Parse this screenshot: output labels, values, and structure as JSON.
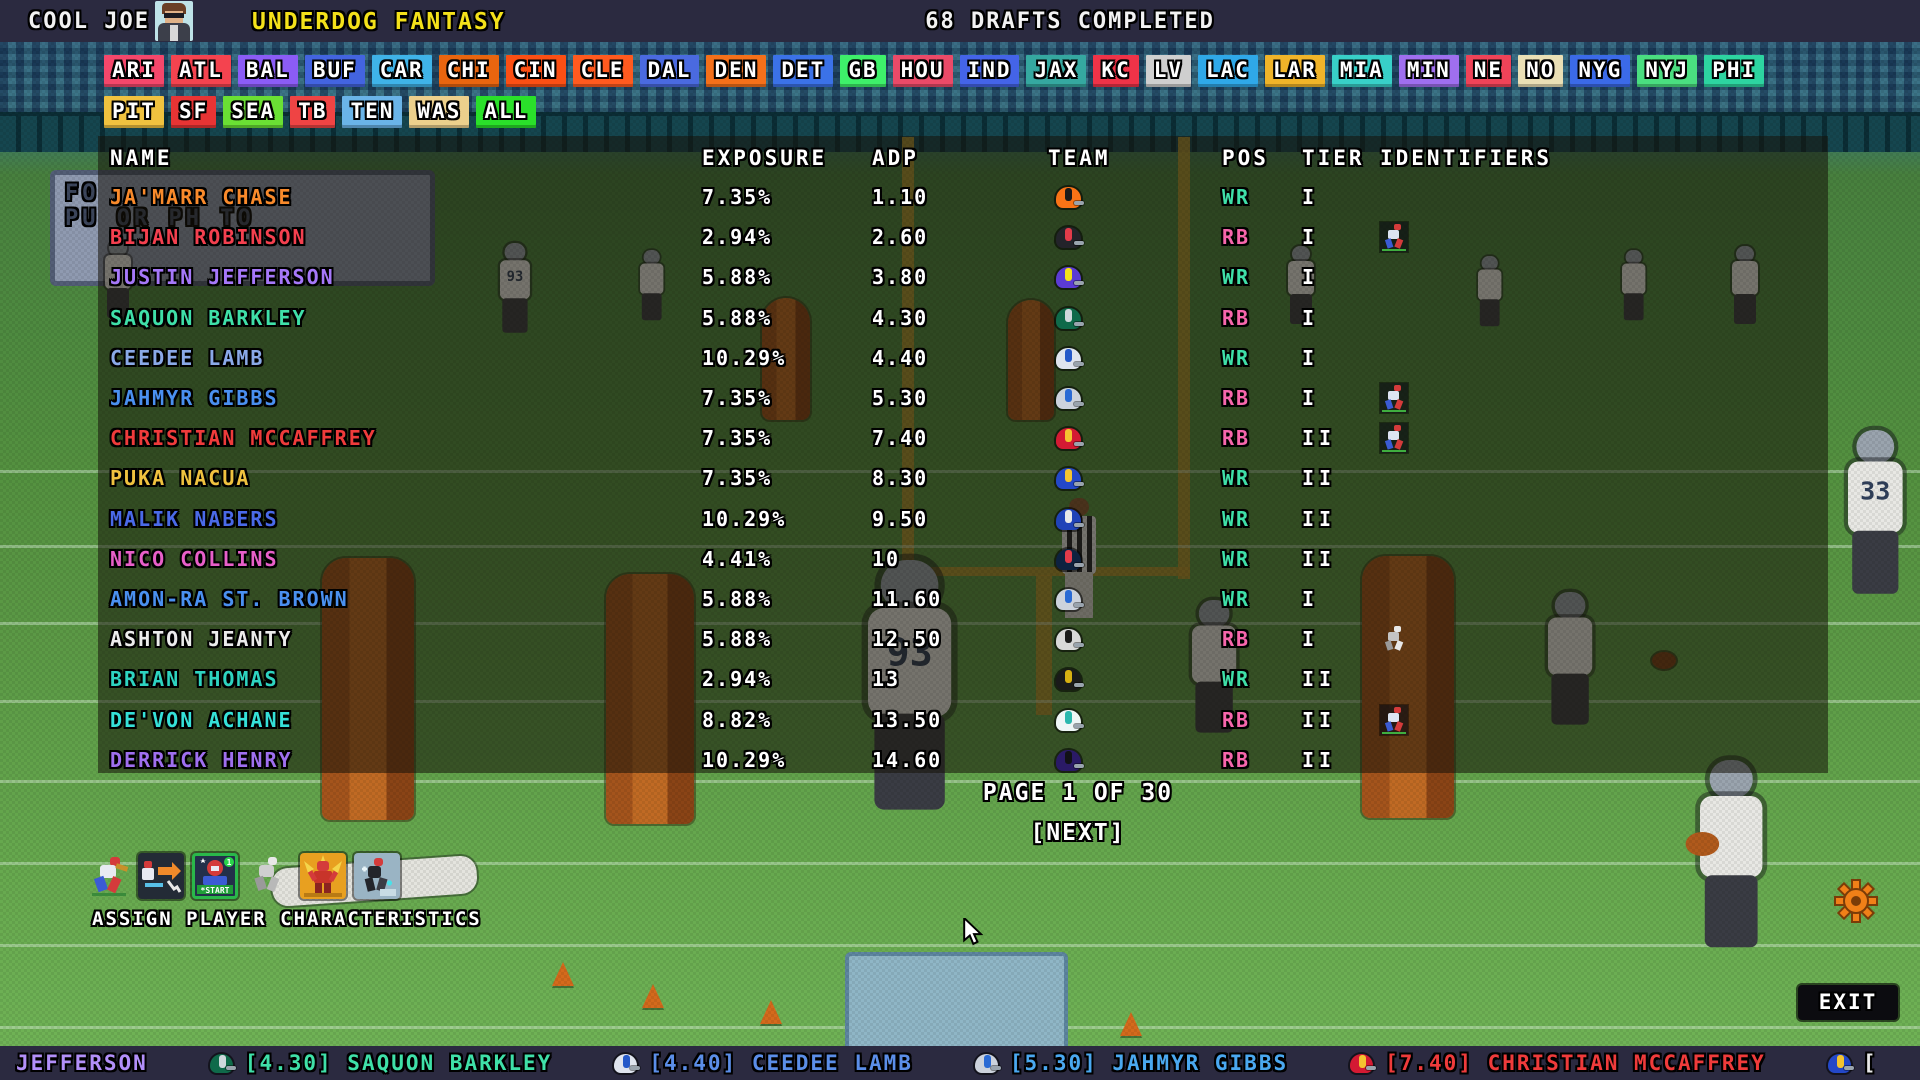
{
  "topbar": {
    "user": "COOL JOE",
    "app_title": "UNDERDOG FANTASY",
    "drafts_completed": "68 DRAFTS COMPLETED",
    "avatar": "user-avatar"
  },
  "team_tabs": {
    "row1": [
      {
        "label": "ARI",
        "color": "#f4476b"
      },
      {
        "label": "ATL",
        "color": "#f4434f"
      },
      {
        "label": "BAL",
        "color": "#8b5cf6"
      },
      {
        "label": "BUF",
        "color": "#4364e0"
      },
      {
        "label": "CAR",
        "color": "#3fb3e8"
      },
      {
        "label": "CHI",
        "color": "#e8650f"
      },
      {
        "label": "CIN",
        "color": "#fb4f14"
      },
      {
        "label": "CLE",
        "color": "#ff5a1f"
      },
      {
        "label": "DAL",
        "color": "#4a6ae0"
      },
      {
        "label": "DEN",
        "color": "#f4701a"
      },
      {
        "label": "DET",
        "color": "#3b72e8"
      },
      {
        "label": "GB",
        "color": "#3ef06a"
      },
      {
        "label": "HOU",
        "color": "#ea4a68"
      },
      {
        "label": "IND",
        "color": "#4464e8"
      },
      {
        "label": "JAX",
        "color": "#35a8a0"
      },
      {
        "label": "KC",
        "color": "#ef3348"
      },
      {
        "label": "LV",
        "color": "#cfcfcf"
      },
      {
        "label": "LAC",
        "color": "#2fa8e8"
      },
      {
        "label": "LAR",
        "color": "#f0b429"
      },
      {
        "label": "MIA",
        "color": "#38d0c8"
      },
      {
        "label": "MIN",
        "color": "#9f6fef"
      },
      {
        "label": "NE",
        "color": "#ef4358"
      },
      {
        "label": "NO",
        "color": "#eadfb5"
      },
      {
        "label": "NYG",
        "color": "#3b6ae8"
      },
      {
        "label": "NYJ",
        "color": "#4ade80"
      },
      {
        "label": "PHI",
        "color": "#2dd4a0"
      }
    ],
    "row2": [
      {
        "label": "PIT",
        "color": "#f0c23f"
      },
      {
        "label": "SF",
        "color": "#e83434"
      },
      {
        "label": "SEA",
        "color": "#6ae034"
      },
      {
        "label": "TB",
        "color": "#ef4444"
      },
      {
        "label": "TEN",
        "color": "#6ab4e8"
      },
      {
        "label": "WAS",
        "color": "#ecd08c"
      },
      {
        "label": "ALL",
        "color": "#2ae02a"
      }
    ]
  },
  "table": {
    "headers": {
      "name": "NAME",
      "exposure": "EXPOSURE",
      "adp": "ADP",
      "team": "TEAM",
      "pos": "POS",
      "tier": "TIER",
      "identifiers": "IDENTIFIERS"
    },
    "pos_colors": {
      "WR": "#3fe0a8",
      "RB": "#f766ac"
    },
    "rows": [
      {
        "name": "JA'MARR CHASE",
        "color": "#f98a2b",
        "exposure": "7.35%",
        "adp": "1.10",
        "team": "CIN",
        "helmet": "#f97316",
        "accent": "#1a1a1a",
        "pos": "WR",
        "tier": "I",
        "identifier": ""
      },
      {
        "name": "BIJAN ROBINSON",
        "color": "#f4404f",
        "exposure": "2.94%",
        "adp": "2.60",
        "team": "ATL",
        "helmet": "#23232a",
        "accent": "#e23b4a",
        "pos": "RB",
        "tier": "I",
        "identifier": "rusher"
      },
      {
        "name": "JUSTIN JEFFERSON",
        "color": "#a678f9",
        "exposure": "5.88%",
        "adp": "3.80",
        "team": "MIN",
        "helmet": "#5b3bd4",
        "accent": "#f4e11a",
        "pos": "WR",
        "tier": "I",
        "identifier": ""
      },
      {
        "name": "SAQUON BARKLEY",
        "color": "#3fe0a8",
        "exposure": "5.88%",
        "adp": "4.30",
        "team": "PHI",
        "helmet": "#0f6a4a",
        "accent": "#cfd8dc",
        "pos": "RB",
        "tier": "I",
        "identifier": ""
      },
      {
        "name": "CEEDEE LAMB",
        "color": "#8aa9e8",
        "exposure": "10.29%",
        "adp": "4.40",
        "team": "DAL",
        "helmet": "#dfe4ee",
        "accent": "#2458c8",
        "pos": "WR",
        "tier": "I",
        "identifier": ""
      },
      {
        "name": "JAHMYR GIBBS",
        "color": "#4a90f0",
        "exposure": "7.35%",
        "adp": "5.30",
        "team": "DET",
        "helmet": "#ccd2dc",
        "accent": "#2a6ad4",
        "pos": "RB",
        "tier": "I",
        "identifier": "rusher"
      },
      {
        "name": "CHRISTIAN MCCAFFREY",
        "color": "#ef3b3b",
        "exposure": "7.35%",
        "adp": "7.40",
        "team": "SF",
        "helmet": "#d41a33",
        "accent": "#f4c430",
        "pos": "RB",
        "tier": "II",
        "identifier": "rusher"
      },
      {
        "name": "PUKA NACUA",
        "color": "#f0c23f",
        "exposure": "7.35%",
        "adp": "8.30",
        "team": "LAR",
        "helmet": "#2448c8",
        "accent": "#f4c430",
        "pos": "WR",
        "tier": "II",
        "identifier": ""
      },
      {
        "name": "MALIK NABERS",
        "color": "#4a6ae8",
        "exposure": "10.29%",
        "adp": "9.50",
        "team": "NYG",
        "helmet": "#2043b8",
        "accent": "#e8e8e8",
        "pos": "WR",
        "tier": "II",
        "identifier": ""
      },
      {
        "name": "NICO COLLINS",
        "color": "#e85fc8",
        "exposure": "4.41%",
        "adp": "10",
        "team": "HOU",
        "helmet": "#0d2240",
        "accent": "#e23b4a",
        "pos": "WR",
        "tier": "II",
        "identifier": ""
      },
      {
        "name": "AMON-RA ST. BROWN",
        "color": "#4a90f0",
        "exposure": "5.88%",
        "adp": "11.60",
        "team": "DET",
        "helmet": "#ccd2dc",
        "accent": "#2a6ad4",
        "pos": "WR",
        "tier": "I",
        "identifier": ""
      },
      {
        "name": "ASHTON JEANTY",
        "color": "#ececec",
        "exposure": "5.88%",
        "adp": "12.50",
        "team": "LV",
        "helmet": "#d8d8d8",
        "accent": "#1a1a1a",
        "pos": "RB",
        "tier": "I",
        "identifier": "rookie"
      },
      {
        "name": "BRIAN THOMAS",
        "color": "#2ed4c0",
        "exposure": "2.94%",
        "adp": "13",
        "team": "JAX",
        "helmet": "#1a1a1a",
        "accent": "#d8b012",
        "pos": "WR",
        "tier": "II",
        "identifier": ""
      },
      {
        "name": "DE'VON ACHANE",
        "color": "#35e0d8",
        "exposure": "8.82%",
        "adp": "13.50",
        "team": "MIA",
        "helmet": "#eef6f6",
        "accent": "#2ab8ae",
        "pos": "RB",
        "tier": "II",
        "identifier": "rusher"
      },
      {
        "name": "DERRICK HENRY",
        "color": "#9f6fef",
        "exposure": "10.29%",
        "adp": "14.60",
        "team": "BAL",
        "helmet": "#2a1a66",
        "accent": "#111116",
        "pos": "RB",
        "tier": "II",
        "identifier": ""
      }
    ]
  },
  "pagination": {
    "page_text": "PAGE 1 OF 30",
    "next_label": "[NEXT]"
  },
  "tools": {
    "label": "ASSIGN PLAYER CHARACTERISTICS",
    "icons": [
      "runner-icon",
      "add-player-icon",
      "start-player-icon",
      "sketch-player-icon",
      "mvp-player-icon",
      "upgrade-player-icon"
    ],
    "start_tile_text": "*START",
    "start_tile_badge": "1"
  },
  "footer_right": {
    "gear_icon": "gear-icon",
    "exit_label": "EXIT"
  },
  "ticker": {
    "items": [
      {
        "text": "JEFFERSON",
        "color": "#b28ff9",
        "helmet": null,
        "accent": null
      },
      {
        "text": "[4.30] SAQUON BARKLEY",
        "color": "#3fe0a8",
        "helmet": "#0f6a4a",
        "accent": "#cfd8dc"
      },
      {
        "text": "[4.40] CEEDEE LAMB",
        "color": "#5b8ee8",
        "helmet": "#dfe4ee",
        "accent": "#2458c8"
      },
      {
        "text": "[5.30] JAHMYR GIBBS",
        "color": "#4aa8f0",
        "helmet": "#ccd2dc",
        "accent": "#2a6ad4"
      },
      {
        "text": "[7.40] CHRISTIAN MCCAFFREY",
        "color": "#ef3b3b",
        "helmet": "#d41a33",
        "accent": "#f4c430"
      },
      {
        "text": "[",
        "color": "#e8e8e8",
        "helmet": "#2448c8",
        "accent": "#f4c430"
      }
    ]
  }
}
